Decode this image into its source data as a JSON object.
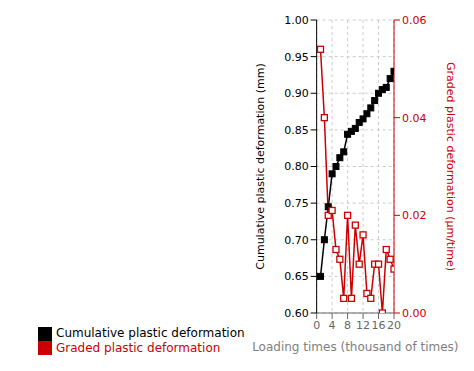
{
  "chart_data": {
    "type": "line",
    "x": [
      1,
      2,
      3,
      4,
      5,
      6,
      7,
      8,
      9,
      10,
      11,
      12,
      13,
      14,
      15,
      16,
      17,
      18,
      19,
      20
    ],
    "series": [
      {
        "name": "Cumulative plastic deformation",
        "color": "#000000",
        "marker": "square",
        "axis": "y",
        "values": [
          0.65,
          0.7,
          0.745,
          0.79,
          0.8,
          0.812,
          0.82,
          0.844,
          0.848,
          0.852,
          0.86,
          0.865,
          0.872,
          0.88,
          0.89,
          0.9,
          0.905,
          0.908,
          0.92,
          0.93
        ]
      },
      {
        "name": "Graded plastic deformation",
        "color": "#cc0000",
        "marker": "open_square",
        "axis": "y2",
        "values": [
          0.054,
          0.04,
          0.02,
          0.021,
          0.013,
          0.011,
          0.003,
          0.02,
          0.003,
          0.018,
          0.01,
          0.016,
          0.004,
          0.003,
          0.01,
          0.01,
          0.0,
          0.013,
          0.011,
          0.009
        ]
      }
    ],
    "xlabel": "Loading times (thousand of times)",
    "ylabel": "Cumulative plastic deformation (mm)",
    "y2label": "Graded plastic deformation (μm/time)",
    "xlim": [
      0,
      20
    ],
    "xticks": [
      0,
      4,
      8,
      12,
      16,
      20
    ],
    "ylim": [
      0.6,
      1.0
    ],
    "yticks": [
      {
        "value": 0.6,
        "label": "0.60"
      },
      {
        "value": 0.65,
        "label": "0.65"
      },
      {
        "value": 0.7,
        "label": "0.70"
      },
      {
        "value": 0.75,
        "label": "0.75"
      },
      {
        "value": 0.8,
        "label": "0.80"
      },
      {
        "value": 0.85,
        "label": "0.85"
      },
      {
        "value": 0.9,
        "label": "0.90"
      },
      {
        "value": 0.95,
        "label": "0.95"
      },
      {
        "value": 1.0,
        "label": "1.00"
      }
    ],
    "y2lim": [
      0.0,
      0.06
    ],
    "y2ticks": [
      {
        "value": 0.0,
        "label": "0.00"
      },
      {
        "value": 0.02,
        "label": "0.02"
      },
      {
        "value": 0.04,
        "label": "0.04"
      },
      {
        "value": 0.06,
        "label": "0.06"
      }
    ],
    "grid": true,
    "legend": "bottom"
  }
}
